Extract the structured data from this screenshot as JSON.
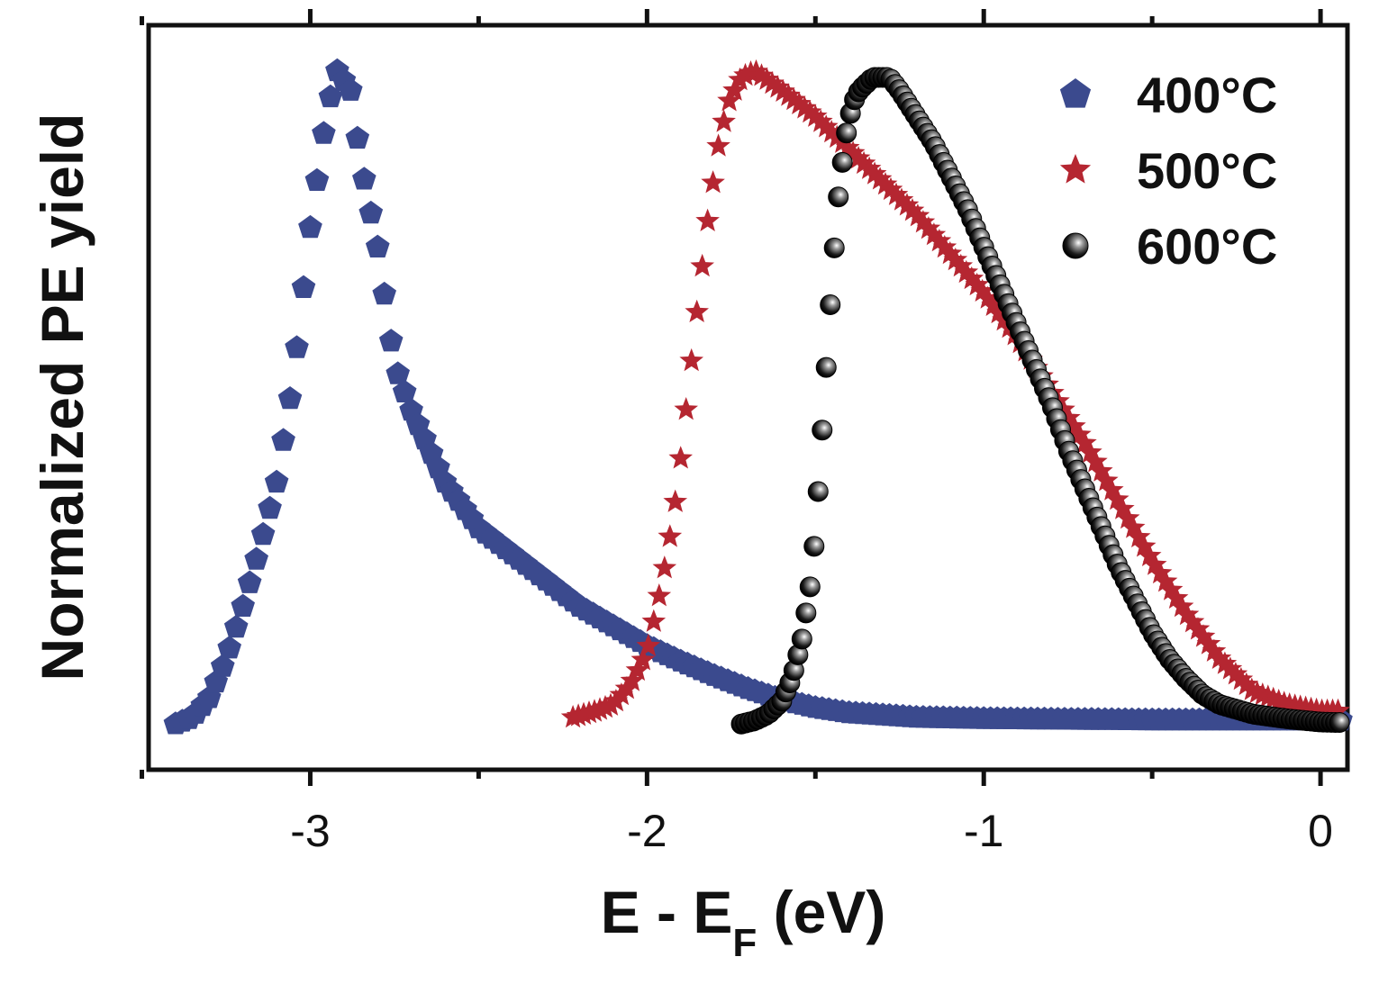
{
  "chart_data": {
    "type": "scatter",
    "title": "",
    "xlabel": "E - E",
    "xlabel_subscript": "F",
    "xlabel_suffix": " (eV)",
    "ylabel": "Normalized PE yield",
    "xlim": [
      -3.48,
      0.08
    ],
    "ylim": [
      -0.07,
      1.07
    ],
    "x_ticks": [
      -3,
      -2,
      -1,
      0
    ],
    "x_tick_labels": [
      "-3",
      "-2",
      "-1",
      "0"
    ],
    "y_tick_labels_shown": false,
    "legend_position": "top-right",
    "series": [
      {
        "name": "400°C",
        "marker": "pentagon",
        "color": "#3b4a8e",
        "x_start": -3.4,
        "x_end": 0.08,
        "step": 0.02,
        "peak_x": -2.92,
        "peak_y": 1.0,
        "x_points": [
          -3.4,
          -3.35,
          -3.3,
          -3.25,
          -3.2,
          -3.15,
          -3.1,
          -3.05,
          -3.0,
          -2.95,
          -2.92,
          -2.88,
          -2.85,
          -2.8,
          -2.75,
          -2.7,
          -2.6,
          -2.5,
          -2.4,
          -2.3,
          -2.2,
          -2.1,
          -2.0,
          -1.9,
          -1.8,
          -1.7,
          -1.6,
          -1.5,
          -1.4,
          -1.2,
          -1.0,
          -0.5,
          0.0,
          0.08
        ],
        "y_points": [
          0.0,
          0.01,
          0.04,
          0.1,
          0.18,
          0.27,
          0.37,
          0.53,
          0.76,
          0.94,
          1.0,
          0.97,
          0.86,
          0.73,
          0.55,
          0.48,
          0.37,
          0.3,
          0.26,
          0.22,
          0.18,
          0.15,
          0.12,
          0.096,
          0.074,
          0.054,
          0.037,
          0.025,
          0.017,
          0.01,
          0.008,
          0.006,
          0.006,
          0.006
        ]
      },
      {
        "name": "500°C",
        "marker": "star",
        "color": "#b52631",
        "x_start": -2.22,
        "x_end": 0.08,
        "step": 0.016,
        "peak_x": -1.68,
        "peak_y": 1.0,
        "x_points": [
          -2.22,
          -2.15,
          -2.1,
          -2.05,
          -2.0,
          -1.97,
          -1.94,
          -1.91,
          -1.88,
          -1.85,
          -1.82,
          -1.79,
          -1.76,
          -1.72,
          -1.68,
          -1.6,
          -1.5,
          -1.4,
          -1.3,
          -1.2,
          -1.1,
          -1.0,
          -0.9,
          -0.8,
          -0.7,
          -0.6,
          -0.5,
          -0.4,
          -0.3,
          -0.2,
          -0.1,
          0.0,
          0.08
        ],
        "y_points": [
          0.01,
          0.02,
          0.03,
          0.06,
          0.11,
          0.18,
          0.26,
          0.36,
          0.5,
          0.64,
          0.77,
          0.88,
          0.95,
          0.99,
          1.0,
          0.97,
          0.93,
          0.88,
          0.83,
          0.78,
          0.72,
          0.66,
          0.59,
          0.51,
          0.43,
          0.34,
          0.25,
          0.17,
          0.1,
          0.05,
          0.03,
          0.02,
          0.02
        ]
      },
      {
        "name": "600°C",
        "marker": "sphere",
        "color": "#1a1a1a",
        "x_start": -1.72,
        "x_end": 0.08,
        "step": 0.012,
        "peak_x": -1.28,
        "peak_y": 0.99,
        "x_points": [
          -1.72,
          -1.68,
          -1.64,
          -1.6,
          -1.57,
          -1.54,
          -1.51,
          -1.49,
          -1.47,
          -1.45,
          -1.43,
          -1.41,
          -1.39,
          -1.37,
          -1.35,
          -1.33,
          -1.3,
          -1.28,
          -1.25,
          -1.2,
          -1.15,
          -1.1,
          -1.05,
          -1.0,
          -0.95,
          -0.9,
          -0.85,
          -0.8,
          -0.75,
          -0.7,
          -0.65,
          -0.6,
          -0.55,
          -0.5,
          -0.45,
          -0.4,
          -0.35,
          -0.3,
          -0.2,
          -0.1,
          0.0,
          0.08
        ],
        "y_points": [
          0.0,
          0.005,
          0.015,
          0.035,
          0.07,
          0.13,
          0.23,
          0.37,
          0.53,
          0.69,
          0.82,
          0.9,
          0.95,
          0.97,
          0.98,
          0.99,
          0.99,
          0.99,
          0.97,
          0.93,
          0.89,
          0.84,
          0.79,
          0.73,
          0.67,
          0.61,
          0.55,
          0.49,
          0.42,
          0.36,
          0.3,
          0.24,
          0.19,
          0.14,
          0.1,
          0.07,
          0.045,
          0.03,
          0.015,
          0.008,
          0.003,
          0.002
        ]
      }
    ]
  }
}
